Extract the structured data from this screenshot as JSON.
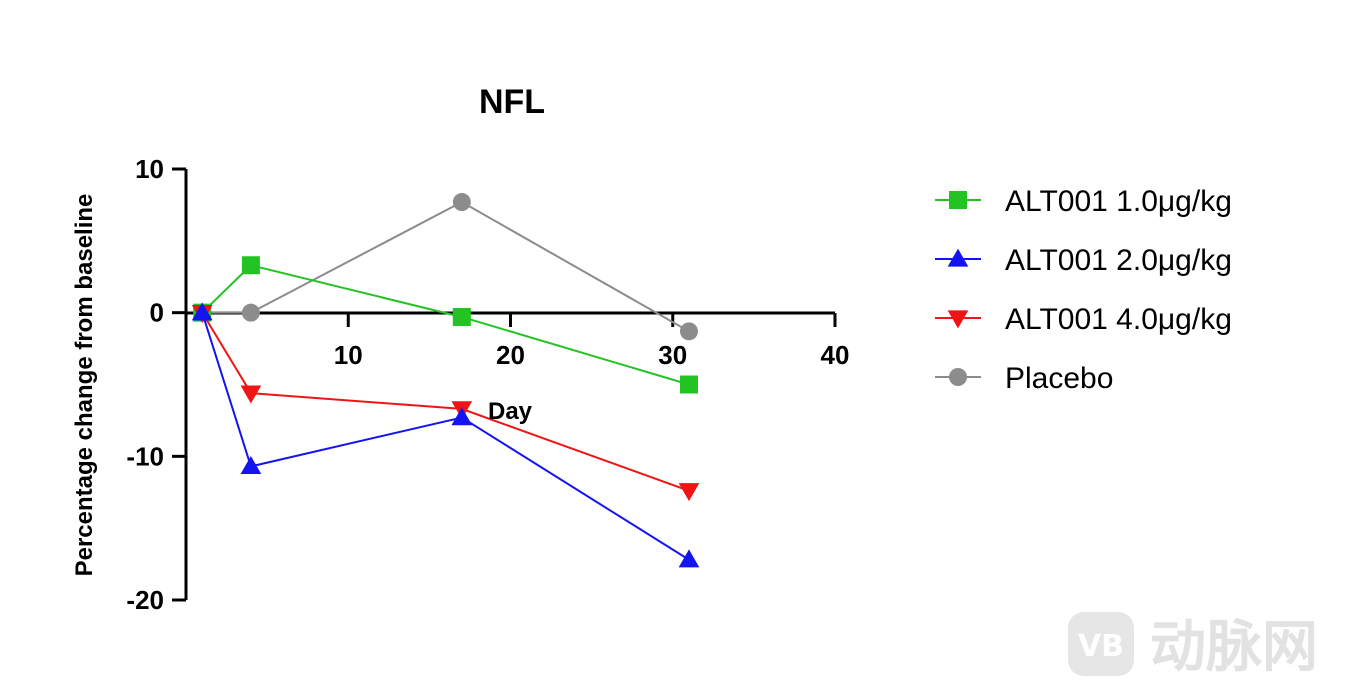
{
  "chart_data": {
    "type": "line",
    "title": "NFL",
    "xlabel": "Day",
    "ylabel": "Percentage change from baseline",
    "xlim": [
      0,
      40
    ],
    "ylim": [
      -20,
      10
    ],
    "x_ticks": [
      10,
      20,
      30,
      40
    ],
    "y_ticks": [
      10,
      0,
      -10,
      -20
    ],
    "grid": false,
    "legend_position": "right",
    "series": [
      {
        "name": "ALT001 1.0μg/kg",
        "color": "#22c322",
        "marker": "square",
        "x": [
          1,
          4,
          17,
          31
        ],
        "y": [
          0,
          3.3,
          -0.3,
          -5.0
        ]
      },
      {
        "name": "ALT001 2.0μg/kg",
        "color": "#1414f0",
        "marker": "triangle-up",
        "x": [
          1,
          4,
          17,
          31
        ],
        "y": [
          0,
          -10.7,
          -7.3,
          -17.2
        ]
      },
      {
        "name": "ALT001 4.0μg/kg",
        "color": "#f01414",
        "marker": "triangle-down",
        "x": [
          1,
          4,
          17,
          31
        ],
        "y": [
          0,
          -5.6,
          -6.7,
          -12.4
        ]
      },
      {
        "name": "Placebo",
        "color": "#8c8c8c",
        "marker": "circle",
        "x": [
          1,
          4,
          17,
          31
        ],
        "y": [
          0,
          0,
          7.7,
          -1.3
        ]
      }
    ]
  },
  "watermark": {
    "text": "动脉网",
    "logo_text": "VB"
  }
}
